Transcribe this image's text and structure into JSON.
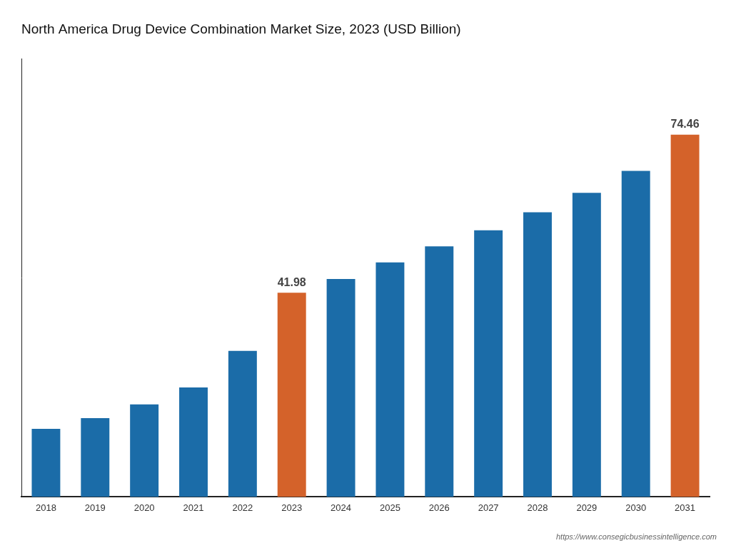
{
  "chart_data": {
    "type": "bar",
    "title": "North America Drug Device Combination Market Size, 2023 (USD Billion)",
    "categories": [
      "2018",
      "2019",
      "2020",
      "2021",
      "2022",
      "2023",
      "2024",
      "2025",
      "2026",
      "2027",
      "2028",
      "2029",
      "2030",
      "2031"
    ],
    "values": [
      14.0,
      16.2,
      19.0,
      22.5,
      30.0,
      41.98,
      44.8,
      48.2,
      51.5,
      54.8,
      58.5,
      62.5,
      67.0,
      74.46
    ],
    "colors": [
      "#1b6ca8",
      "#1b6ca8",
      "#1b6ca8",
      "#1b6ca8",
      "#1b6ca8",
      "#d4622a",
      "#1b6ca8",
      "#1b6ca8",
      "#1b6ca8",
      "#1b6ca8",
      "#1b6ca8",
      "#1b6ca8",
      "#1b6ca8",
      "#d4622a"
    ],
    "annotations": [
      {
        "x": "2023",
        "text": "41.98"
      },
      {
        "x": "2031",
        "text": "74.46"
      },
      {
        "text": "https://www.consegicbusinessintelligence.com"
      }
    ],
    "ylim": [
      0,
      90
    ],
    "grid": false,
    "tick_labels": "x"
  }
}
